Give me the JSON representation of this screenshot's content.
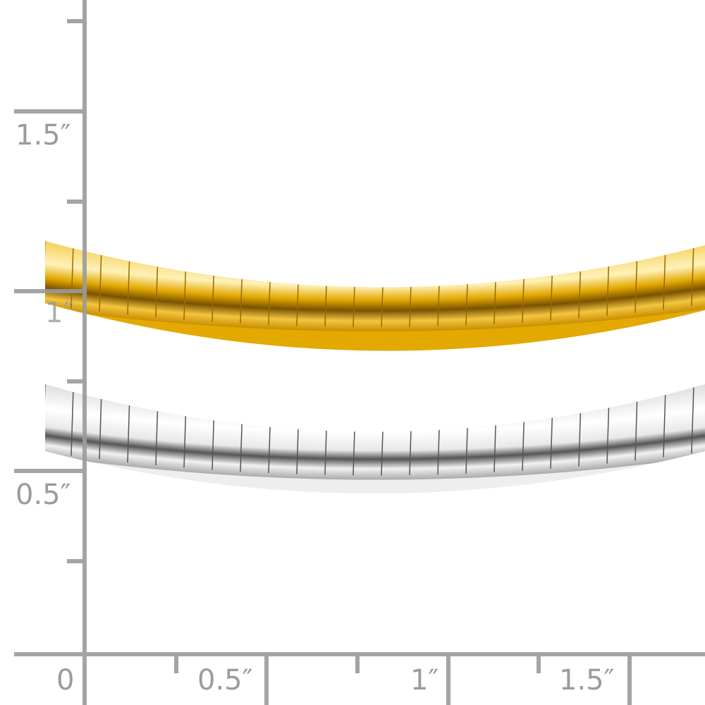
{
  "ruler": {
    "color": "#9b9b9b",
    "vertical_labels": [
      "1.5″",
      "1″",
      "0.5″"
    ],
    "horizontal_labels": [
      "0",
      "0.5″",
      "1″",
      "1.5″"
    ]
  },
  "product": {
    "chains": [
      {
        "name": "gold",
        "color": "#e8b000"
      },
      {
        "name": "silver",
        "color": "#d8d8d8"
      }
    ]
  }
}
